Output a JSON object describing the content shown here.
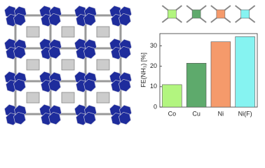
{
  "chart_data": {
    "type": "bar",
    "y_label": "FE(NH₃) [%]",
    "categories": [
      "Co",
      "Cu",
      "Ni",
      "Ni(F)"
    ],
    "values": [
      11,
      21.5,
      32,
      34.5
    ],
    "colors": [
      "#b2f57f",
      "#5eaa6c",
      "#f59a6b",
      "#86f3f1"
    ],
    "ylim": [
      0,
      36
    ],
    "yticks": [
      0,
      10,
      20,
      30
    ]
  }
}
